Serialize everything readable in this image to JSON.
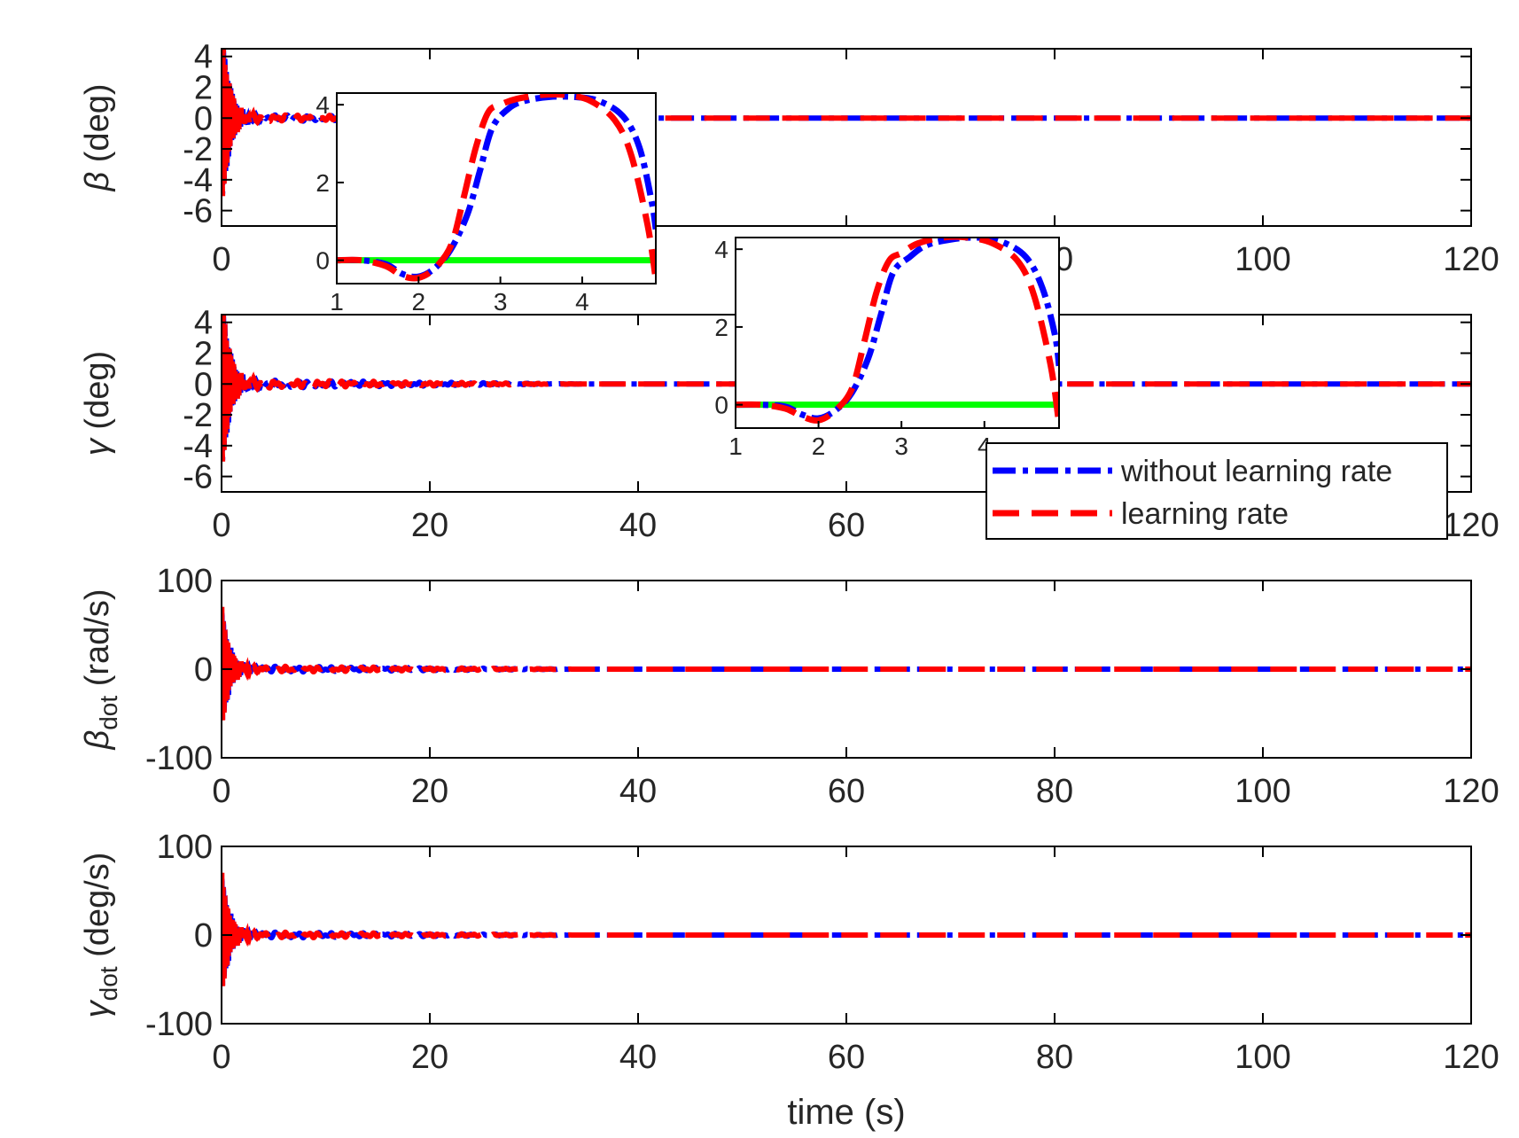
{
  "figure": {
    "xlabel": "time (s)",
    "legend": {
      "placement": "inside second subplot, lower-right",
      "entries": [
        {
          "label": "without learning rate",
          "color": "#0000ff",
          "style": "dash-dot"
        },
        {
          "label": "learning rate",
          "color": "#ff0000",
          "style": "dashed"
        }
      ]
    },
    "reference_color": "#00ff00"
  },
  "chart_data": [
    {
      "type": "line",
      "id": "beta",
      "ylabel_symbol": "β",
      "ylabel_sub": "",
      "ylabel_unit": " (deg)",
      "xlim": [
        0,
        120
      ],
      "ylim": [
        -7,
        4.5
      ],
      "xticks": [
        "0",
        "20",
        "40",
        "60",
        "80",
        "100",
        "120"
      ],
      "yticks": [
        4,
        2,
        0,
        -2,
        -4,
        -6
      ],
      "ytick_labels": [
        "4",
        "2",
        "0",
        "-2",
        "-4",
        "-6"
      ],
      "transient_amp": 6.5,
      "ripple_amp": 0.25,
      "ripple_end": 35,
      "steady": 0,
      "series": [
        {
          "name": "without learning rate"
        },
        {
          "name": "learning rate"
        }
      ]
    },
    {
      "type": "line",
      "id": "gamma",
      "ylabel_symbol": "γ",
      "ylabel_sub": "",
      "ylabel_unit": " (deg)",
      "xlim": [
        0,
        120
      ],
      "ylim": [
        -7,
        4.5
      ],
      "xticks": [
        "0",
        "20",
        "40",
        "60",
        "80",
        "100",
        "120"
      ],
      "yticks": [
        4,
        2,
        0,
        -2,
        -4,
        -6
      ],
      "ytick_labels": [
        "4",
        "2",
        "0",
        "-2",
        "-4",
        "-6"
      ],
      "transient_amp": 6.5,
      "ripple_amp": 0.3,
      "ripple_end": 35,
      "steady": 0,
      "series": [
        {
          "name": "without learning rate"
        },
        {
          "name": "learning rate"
        }
      ]
    },
    {
      "type": "line",
      "id": "beta_dot",
      "ylabel_symbol": "β",
      "ylabel_sub": "dot",
      "ylabel_unit": " (rad/s)",
      "xlim": [
        0,
        120
      ],
      "ylim": [
        -100,
        100
      ],
      "xticks": [
        "0",
        "20",
        "40",
        "60",
        "80",
        "100",
        "120"
      ],
      "yticks": [
        100,
        0,
        -100
      ],
      "ytick_labels": [
        "100",
        "0",
        "-100"
      ],
      "transient_amp": 75,
      "ripple_amp": 4,
      "ripple_end": 35,
      "steady": 0,
      "series": [
        {
          "name": "without learning rate"
        },
        {
          "name": "learning rate"
        }
      ]
    },
    {
      "type": "line",
      "id": "gamma_dot",
      "ylabel_symbol": "γ",
      "ylabel_sub": "dot",
      "ylabel_unit": " (deg/s)",
      "xlim": [
        0,
        120
      ],
      "ylim": [
        -100,
        100
      ],
      "xticks": [
        "0",
        "20",
        "40",
        "60",
        "80",
        "100",
        "120"
      ],
      "yticks": [
        100,
        0,
        -100
      ],
      "ytick_labels": [
        "100",
        "0",
        "-100"
      ],
      "transient_amp": 75,
      "ripple_amp": 4,
      "ripple_end": 35,
      "steady": 0,
      "series": [
        {
          "name": "without learning rate"
        },
        {
          "name": "learning rate"
        }
      ]
    },
    {
      "type": "line",
      "id": "inset_1",
      "xlim": [
        1,
        4.9
      ],
      "ylim": [
        -0.6,
        4.3
      ],
      "xticks": [
        1,
        2,
        3,
        4
      ],
      "xtick_labels": [
        "1",
        "2",
        "3",
        "4"
      ],
      "yticks": [
        0,
        2,
        4
      ],
      "ytick_labels": [
        "0",
        "2",
        "4"
      ],
      "series": [
        {
          "name": "without learning rate",
          "x": [
            1,
            1.3,
            1.6,
            1.8,
            2.0,
            2.2,
            2.4,
            2.6,
            2.75,
            2.9,
            3.1,
            3.3,
            3.6,
            3.9,
            4.2,
            4.5,
            4.7,
            4.85,
            4.9
          ],
          "y": [
            0,
            0,
            -0.1,
            -0.35,
            -0.42,
            -0.2,
            0.3,
            1.2,
            2.3,
            3.4,
            3.9,
            4.1,
            4.2,
            4.2,
            4.1,
            3.7,
            2.9,
            1.5,
            0.8
          ]
        },
        {
          "name": "learning rate",
          "x": [
            1,
            1.3,
            1.6,
            1.8,
            2.0,
            2.2,
            2.4,
            2.55,
            2.7,
            2.85,
            3.0,
            3.2,
            3.5,
            3.8,
            4.1,
            4.4,
            4.6,
            4.8,
            4.9
          ],
          "y": [
            0,
            0,
            -0.15,
            -0.4,
            -0.45,
            -0.2,
            0.4,
            1.6,
            2.9,
            3.8,
            4.0,
            4.15,
            4.25,
            4.25,
            4.1,
            3.6,
            2.7,
            0.9,
            -0.5
          ]
        },
        {
          "name": "reference",
          "x": [
            1,
            4.9
          ],
          "y": [
            0,
            0
          ]
        }
      ]
    },
    {
      "type": "line",
      "id": "inset_2",
      "xlim": [
        1,
        4.9
      ],
      "ylim": [
        -0.6,
        4.3
      ],
      "xticks": [
        1,
        2,
        3,
        4
      ],
      "xtick_labels": [
        "1",
        "2",
        "3",
        "4"
      ],
      "yticks": [
        0,
        2,
        4
      ],
      "ytick_labels": [
        "0",
        "2",
        "4"
      ],
      "series": [
        {
          "name": "without learning rate",
          "x": [
            1,
            1.3,
            1.6,
            1.8,
            2.0,
            2.2,
            2.4,
            2.6,
            2.75,
            2.9,
            3.1,
            3.3,
            3.6,
            3.9,
            4.2,
            4.5,
            4.7,
            4.85,
            4.9
          ],
          "y": [
            0,
            0,
            -0.05,
            -0.25,
            -0.35,
            -0.15,
            0.3,
            1.2,
            2.3,
            3.4,
            3.8,
            4.1,
            4.25,
            4.3,
            4.2,
            3.8,
            3.0,
            1.8,
            1.0
          ]
        },
        {
          "name": "learning rate",
          "x": [
            1,
            1.3,
            1.6,
            1.8,
            2.0,
            2.2,
            2.4,
            2.55,
            2.7,
            2.85,
            3.0,
            3.2,
            3.5,
            3.8,
            4.1,
            4.4,
            4.6,
            4.8,
            4.9
          ],
          "y": [
            0,
            0,
            -0.1,
            -0.3,
            -0.4,
            -0.15,
            0.4,
            1.6,
            2.9,
            3.7,
            3.9,
            4.15,
            4.3,
            4.3,
            4.15,
            3.7,
            2.8,
            1.0,
            -0.5
          ]
        },
        {
          "name": "reference",
          "x": [
            1,
            4.9
          ],
          "y": [
            0,
            0
          ]
        }
      ]
    }
  ]
}
